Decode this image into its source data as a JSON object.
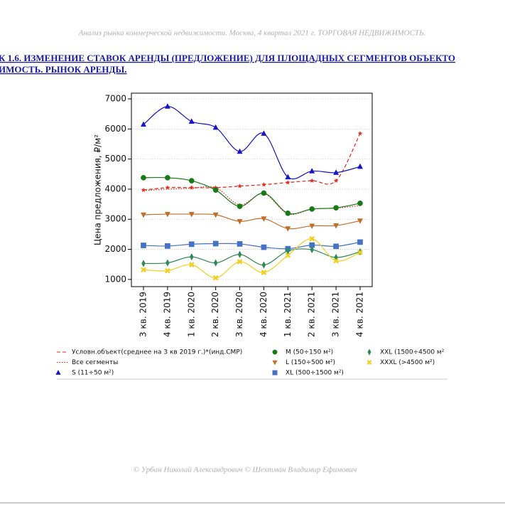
{
  "header": "Анализ рынка коммерческой недвижимости.   Москва,  4 квартал 2021 г.   ТОРГОВАЯ НЕДВИЖИМОСТЬ.",
  "title": [
    "К 1.6. ИЗМЕНЕНИЕ СТАВОК АРЕНДЫ (ПРЕДЛОЖЕНИЕ) ДЛЯ ПЛОЩАДНЫХ СЕГМЕНТОВ ОБЪЕКТО",
    "ИМОСТЬ. РЫНОК АРЕНДЫ."
  ],
  "footer": "© Урбан Николай Александрович   © Шехтман Владимир Ефимович",
  "chart_data": {
    "type": "line",
    "ylabel": "Цена предложения, ₽/м²",
    "categories": [
      "3 кв. 2019",
      "4 кв. 2019",
      "1 кв. 2020",
      "2 кв. 2020",
      "3 кв. 2020",
      "4 кв. 2020",
      "1 кв. 2021",
      "2 кв. 2021",
      "3 кв. 2021",
      "4 кв. 2021"
    ],
    "ylim": [
      760,
      7190
    ],
    "yticks": [
      1000,
      2000,
      3000,
      4000,
      5000,
      6000,
      7000
    ],
    "grid": true,
    "series": [
      {
        "name": "Условн.объект(среднее на 3 кв 2019 г.)*(инд.СМР)",
        "color": "#e0281e",
        "dash": "dashed",
        "marker": "star",
        "values": [
          3970,
          4050,
          4050,
          4050,
          4100,
          4150,
          4220,
          4280,
          4280,
          5850
        ]
      },
      {
        "name": "Все сегменты",
        "color": "#e0281e",
        "dash": "dotted",
        "marker": "none",
        "values": [
          3950,
          4000,
          4030,
          4050,
          3480,
          3850,
          3180,
          3330,
          3370,
          3450
        ]
      },
      {
        "name": "S (11÷50 м²)",
        "color": "#1414c8",
        "dash": "solid",
        "marker": "triangle-up",
        "values": [
          6150,
          6750,
          6250,
          6050,
          5250,
          5850,
          4400,
          4600,
          4550,
          4750
        ]
      },
      {
        "name": "M (50÷150 м²)",
        "color": "#167a16",
        "dash": "solid",
        "marker": "circle",
        "values": [
          4380,
          4380,
          4280,
          3970,
          3430,
          3870,
          3200,
          3340,
          3380,
          3530
        ]
      },
      {
        "name": "L (150÷500 м²)",
        "color": "#c0702a",
        "dash": "solid",
        "marker": "triangle-down",
        "values": [
          3150,
          3170,
          3170,
          3150,
          2930,
          3020,
          2690,
          2780,
          2790,
          2950
        ]
      },
      {
        "name": "XL (500÷1500 м²)",
        "color": "#4472c4",
        "dash": "solid",
        "marker": "square",
        "values": [
          2130,
          2110,
          2170,
          2190,
          2180,
          2070,
          2020,
          2140,
          2100,
          2240
        ]
      },
      {
        "name": "XXL (1500÷4500 м²",
        "color": "#2e8b57",
        "dash": "solid",
        "marker": "diamond",
        "values": [
          1530,
          1550,
          1750,
          1550,
          1830,
          1480,
          1950,
          1990,
          1730,
          1920
        ]
      },
      {
        "name": "XXXL (>4500 м²)",
        "color": "#f0d020",
        "dash": "solid",
        "marker": "x",
        "values": [
          1320,
          1290,
          1490,
          1050,
          1590,
          1230,
          1800,
          2350,
          1620,
          1900
        ]
      }
    ]
  }
}
